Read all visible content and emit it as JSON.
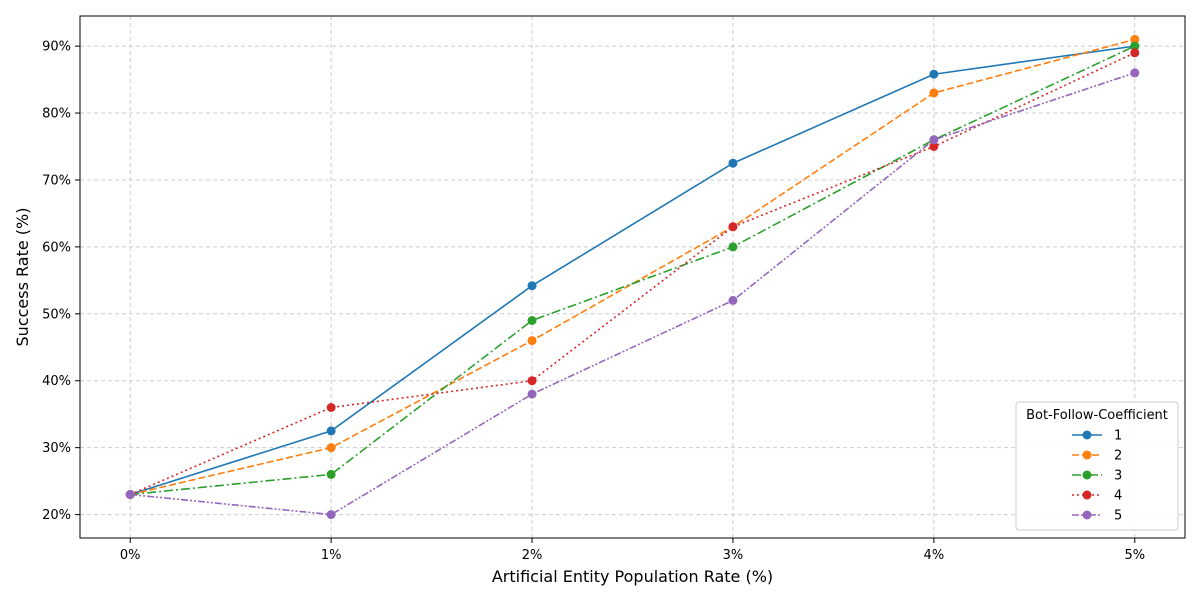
{
  "chart_data": {
    "type": "line",
    "title": "",
    "xlabel": "Artificial Entity Population Rate (%)",
    "ylabel": "Success Rate (%)",
    "x": [
      0,
      1,
      2,
      3,
      4,
      5
    ],
    "x_tick_labels": [
      "0%",
      "1%",
      "2%",
      "3%",
      "4%",
      "5%"
    ],
    "y_ticks": [
      20,
      30,
      40,
      50,
      60,
      70,
      80,
      90
    ],
    "y_tick_labels": [
      "20%",
      "30%",
      "40%",
      "50%",
      "60%",
      "70%",
      "80%",
      "90%"
    ],
    "xlim": [
      -0.25,
      5.25
    ],
    "ylim": [
      16.5,
      94.5
    ],
    "grid": true,
    "legend": {
      "title": "Bot-Follow-Coefficient",
      "placement": "lower-right"
    },
    "series": [
      {
        "name": "1",
        "color": "#1f77b4",
        "line_style": "solid",
        "values": [
          23,
          32.5,
          54.2,
          72.5,
          85.8,
          90
        ]
      },
      {
        "name": "2",
        "color": "#ff7f0e",
        "line_style": "dashed",
        "values": [
          23,
          30,
          46,
          63,
          83,
          91
        ]
      },
      {
        "name": "3",
        "color": "#2ca02c",
        "line_style": "dashdot",
        "values": [
          23,
          26,
          49,
          60,
          76,
          90
        ]
      },
      {
        "name": "4",
        "color": "#d62728",
        "line_style": "dotted",
        "values": [
          23,
          36,
          40,
          63,
          75,
          89
        ]
      },
      {
        "name": "5",
        "color": "#9467bd",
        "line_style": "dashed-dot-dot",
        "values": [
          23,
          20,
          38,
          52,
          76,
          86
        ]
      }
    ]
  }
}
